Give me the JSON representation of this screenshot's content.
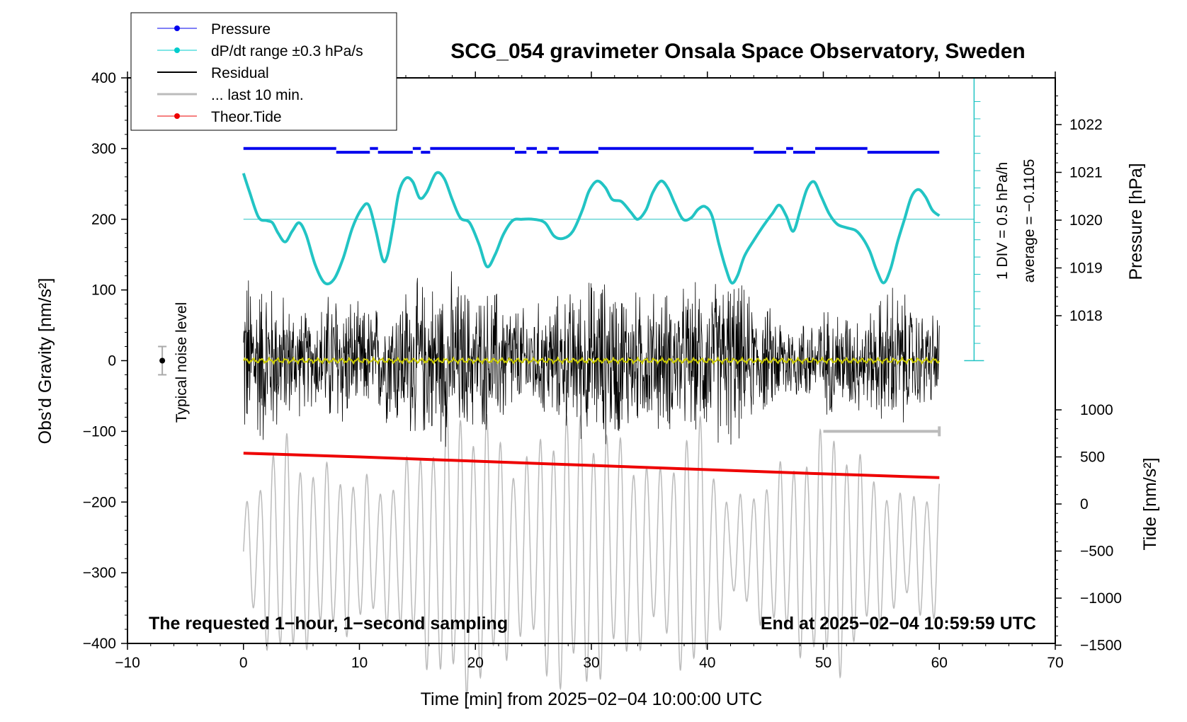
{
  "chart_data": {
    "type": "line",
    "title": "SCG_054 gravimeter Onsala Space Observatory, Sweden",
    "xlabel": "Time [min] from 2025−02−04 10:00:00 UTC",
    "ylabel_left": "Obs’d Gravity [nm/s²]",
    "ylabel_pressure": "Pressure [hPa]",
    "ylabel_tide": "Tide [nm/s²]",
    "xlim": [
      -10,
      70
    ],
    "ylim": [
      -400,
      400
    ],
    "x_ticks": [
      "−10",
      "0",
      "10",
      "20",
      "30",
      "40",
      "50",
      "60",
      "70"
    ],
    "x_tick_values": [
      -10,
      0,
      10,
      20,
      30,
      40,
      50,
      60,
      70
    ],
    "y_ticks": [
      "400",
      "300",
      "200",
      "100",
      "0",
      "−100",
      "−200",
      "−300",
      "−400"
    ],
    "y_tick_values": [
      400,
      300,
      200,
      100,
      0,
      -100,
      -200,
      -300,
      -400
    ],
    "pressure_ticks": [
      "1022",
      "1021",
      "1020",
      "1019",
      "1018"
    ],
    "pressure_tick_values": [
      1022,
      1021,
      1020,
      1019,
      1018
    ],
    "tide_ticks": [
      "1000",
      "500",
      "0",
      "−500",
      "−1000",
      "−1500"
    ],
    "tide_tick_values": [
      1000,
      500,
      0,
      -500,
      -1000,
      -1500
    ],
    "legend": [
      {
        "label": "Pressure",
        "color": "#0000ee",
        "marker": true
      },
      {
        "label": "dP/dt range ±0.3 hPa/s",
        "color": "#00cccc",
        "marker": true
      },
      {
        "label": "Residual",
        "color": "#000000",
        "marker": false
      },
      {
        "label": "... last 10 min.",
        "color": "#bbbbbb",
        "marker": false
      },
      {
        "label": "Theor.Tide",
        "color": "#ee0000",
        "marker": true
      }
    ],
    "legend_position": "top-left",
    "note_left": "The requested 1−hour, 1−second sampling",
    "note_right": "End at 2025−02−04 10:59:59 UTC",
    "noise_label": "Typical noise level",
    "scale_note": "1 DIV = 0.5 hPa/h",
    "average_note": "average = −0.1105",
    "series": [
      {
        "name": "Pressure",
        "color": "#0000ee",
        "y_axis": "pressure",
        "x": [
          0,
          8.0,
          8.0,
          10.9,
          10.9,
          11.6,
          11.6,
          14.6,
          14.6,
          15.3,
          15.3,
          16.1,
          16.1,
          23.4,
          23.4,
          24.4,
          24.4,
          25.3,
          25.3,
          26.2,
          26.2,
          27.2,
          27.2,
          30.6,
          30.6,
          44.0,
          44.0,
          46.8,
          46.8,
          47.4,
          47.4,
          49.3,
          49.3,
          53.8,
          53.8,
          60
        ],
        "y": [
          1021.5,
          1021.5,
          1021.42,
          1021.42,
          1021.5,
          1021.5,
          1021.42,
          1021.42,
          1021.5,
          1021.5,
          1021.42,
          1021.42,
          1021.5,
          1021.5,
          1021.42,
          1021.42,
          1021.5,
          1021.5,
          1021.42,
          1021.42,
          1021.5,
          1021.5,
          1021.42,
          1021.42,
          1021.5,
          1021.5,
          1021.42,
          1021.42,
          1021.5,
          1021.5,
          1021.42,
          1021.42,
          1021.5,
          1021.5,
          1021.42,
          1021.42
        ]
      },
      {
        "name": "dP/dt",
        "color": "#22c4c4",
        "y_axis": "left",
        "x": [
          0,
          0.5,
          1.3,
          2.0,
          2.5,
          3.0,
          3.6,
          4.2,
          4.8,
          5.4,
          6.2,
          7.0,
          7.8,
          8.6,
          9.4,
          10.2,
          10.8,
          11.4,
          12.0,
          12.4,
          12.9,
          13.4,
          14.0,
          14.6,
          15.2,
          15.8,
          16.6,
          17.3,
          18.0,
          18.7,
          19.5,
          20.3,
          21.0,
          21.7,
          22.4,
          23.2,
          24.0,
          25.0,
          26.0,
          26.8,
          27.6,
          28.4,
          29.2,
          29.8,
          30.5,
          31.2,
          31.8,
          32.6,
          33.4,
          34.0,
          34.7,
          35.3,
          36.0,
          36.6,
          37.2,
          37.9,
          38.6,
          39.2,
          39.8,
          40.4,
          41.0,
          41.6,
          42.1,
          42.6,
          43.2,
          44.0,
          44.8,
          45.6,
          46.2,
          46.8,
          47.4,
          48.0,
          48.6,
          49.2,
          49.8,
          50.5,
          51.2,
          52.0,
          52.8,
          53.4,
          54.0,
          54.6,
          55.2,
          55.8,
          56.4,
          57.0,
          57.6,
          58.2,
          58.8,
          59.4,
          60
        ],
        "y": [
          265,
          240,
          203,
          198,
          195,
          180,
          168,
          183,
          195,
          178,
          135,
          110,
          115,
          145,
          188,
          215,
          220,
          185,
          143,
          148,
          190,
          238,
          258,
          253,
          230,
          238,
          265,
          258,
          228,
          202,
          195,
          165,
          133,
          150,
          178,
          198,
          200,
          200,
          195,
          176,
          173,
          183,
          212,
          240,
          254,
          245,
          228,
          225,
          210,
          200,
          213,
          238,
          254,
          244,
          222,
          200,
          202,
          214,
          218,
          205,
          165,
          130,
          110,
          120,
          148,
          170,
          190,
          208,
          220,
          205,
          183,
          212,
          243,
          253,
          233,
          208,
          193,
          188,
          184,
          173,
          155,
          128,
          110,
          130,
          168,
          200,
          232,
          242,
          232,
          213,
          205
        ]
      },
      {
        "name": "Theor.Tide",
        "color": "#ee0000",
        "y_axis": "tide",
        "x": [
          0,
          10,
          20,
          30,
          40,
          50,
          60
        ],
        "y": [
          540,
          500,
          455,
          410,
          365,
          320,
          280
        ]
      }
    ],
    "residual_envelope": {
      "color": "#000000",
      "x": [
        0,
        2,
        4,
        6,
        8,
        10,
        12,
        14,
        16,
        18,
        20,
        22,
        24,
        26,
        28,
        30,
        32,
        34,
        36,
        38,
        40,
        42,
        44,
        46,
        48,
        50,
        52,
        54,
        56,
        58,
        60
      ],
      "amp": [
        150,
        140,
        95,
        75,
        130,
        85,
        95,
        125,
        130,
        140,
        110,
        120,
        85,
        95,
        110,
        135,
        135,
        110,
        115,
        115,
        125,
        145,
        95,
        80,
        65,
        85,
        85,
        80,
        130,
        85,
        75
      ]
    },
    "smoothed_residual": {
      "color": "#cccc00",
      "level": 0
    },
    "last_10_min": {
      "color": "#bbbbbb",
      "x": [
        50,
        60
      ],
      "y": -100
    },
    "tide_oscillation": {
      "color": "#bbbbbb",
      "x": [
        0,
        3,
        6,
        9,
        12,
        15,
        18,
        21,
        24,
        27,
        30,
        33,
        36,
        39,
        42,
        45,
        48,
        51,
        54,
        57,
        60
      ],
      "amp": [
        60,
        180,
        130,
        120,
        100,
        150,
        220,
        200,
        130,
        210,
        200,
        160,
        120,
        210,
        70,
        110,
        150,
        190,
        120,
        80,
        110
      ],
      "center": -270
    },
    "noise_bar": {
      "x": -7,
      "y": 0,
      "err": 20
    }
  }
}
